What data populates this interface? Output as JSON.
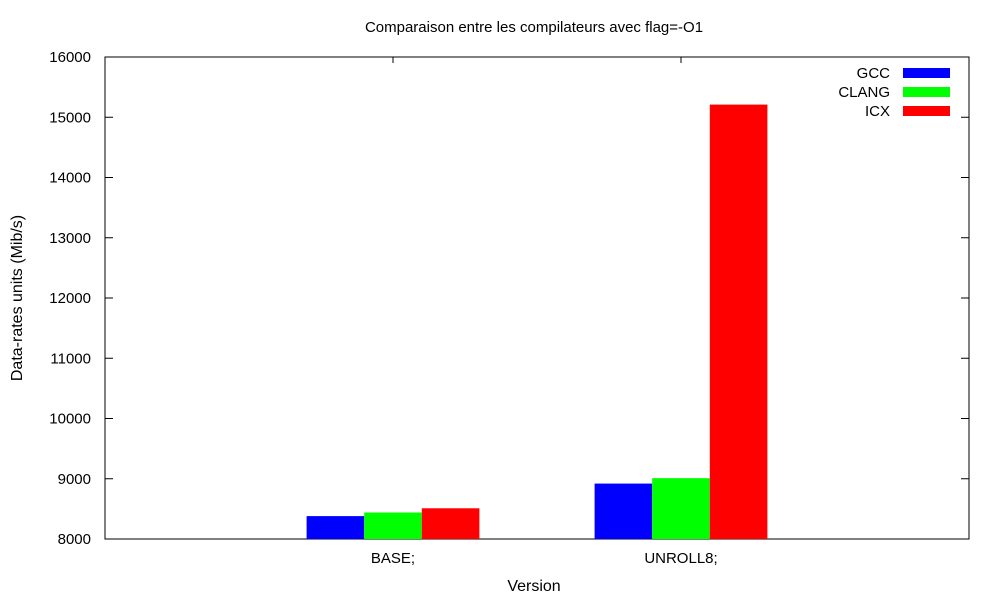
{
  "chart_data": {
    "type": "bar",
    "title": "Comparaison entre les compilateurs avec flag=-O1",
    "xlabel": "Version",
    "ylabel": "Data-rates units (Mib/s)",
    "categories": [
      "BASE;",
      "UNROLL8;"
    ],
    "series": [
      {
        "name": "GCC",
        "values": [
          8380,
          8920
        ],
        "color": "#0000ff"
      },
      {
        "name": "CLANG",
        "values": [
          8440,
          9010
        ],
        "color": "#00ff00"
      },
      {
        "name": "ICX",
        "values": [
          8510,
          15210
        ],
        "color": "#ff0000"
      }
    ],
    "ylim": [
      8000,
      16000
    ],
    "yticks": [
      "8000",
      "9000",
      "10000",
      "11000",
      "12000",
      "13000",
      "14000",
      "15000",
      "16000"
    ],
    "grid": false,
    "legend_position": "top-right"
  }
}
